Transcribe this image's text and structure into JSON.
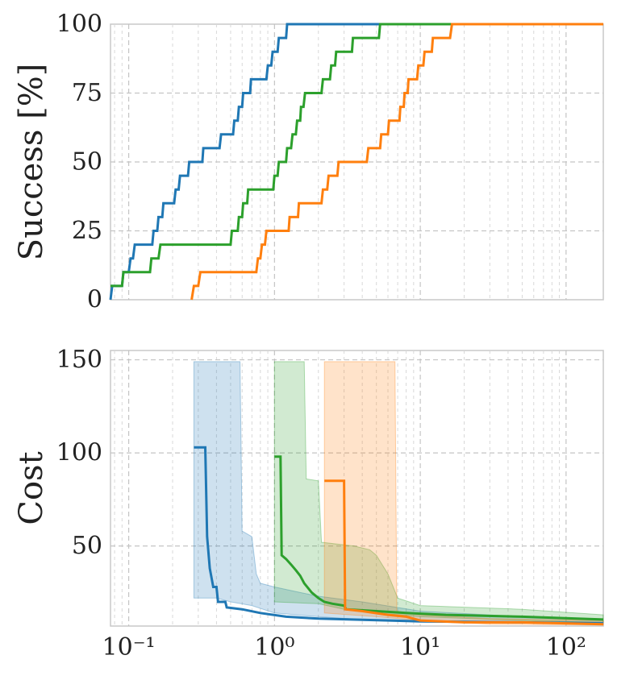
{
  "chart_data": [
    {
      "type": "line",
      "xscale": "log",
      "xlim": [
        0.075,
        180
      ],
      "ylim": [
        0,
        100
      ],
      "ylabel": "Success [%]",
      "grid": true,
      "yticks": [
        {
          "value": 0,
          "label": "0"
        },
        {
          "value": 25,
          "label": "25"
        },
        {
          "value": 50,
          "label": "50"
        },
        {
          "value": 75,
          "label": "75"
        },
        {
          "value": 100,
          "label": "100"
        }
      ],
      "series": [
        {
          "color": "#1f77b4",
          "points": [
            [
              0.075,
              0
            ],
            [
              0.077,
              5
            ],
            [
              0.09,
              5
            ],
            [
              0.092,
              10
            ],
            [
              0.1,
              10
            ],
            [
              0.103,
              15
            ],
            [
              0.107,
              15
            ],
            [
              0.11,
              20
            ],
            [
              0.145,
              20
            ],
            [
              0.148,
              25
            ],
            [
              0.157,
              25
            ],
            [
              0.16,
              30
            ],
            [
              0.17,
              30
            ],
            [
              0.173,
              35
            ],
            [
              0.205,
              35
            ],
            [
              0.21,
              40
            ],
            [
              0.22,
              40
            ],
            [
              0.225,
              45
            ],
            [
              0.255,
              45
            ],
            [
              0.26,
              50
            ],
            [
              0.32,
              50
            ],
            [
              0.325,
              55
            ],
            [
              0.42,
              55
            ],
            [
              0.43,
              60
            ],
            [
              0.52,
              60
            ],
            [
              0.53,
              65
            ],
            [
              0.56,
              65
            ],
            [
              0.57,
              70
            ],
            [
              0.6,
              70
            ],
            [
              0.61,
              75
            ],
            [
              0.68,
              75
            ],
            [
              0.69,
              80
            ],
            [
              0.88,
              80
            ],
            [
              0.9,
              85
            ],
            [
              0.95,
              85
            ],
            [
              0.97,
              90
            ],
            [
              1.05,
              90
            ],
            [
              1.07,
              95
            ],
            [
              1.2,
              95
            ],
            [
              1.22,
              100
            ],
            [
              180,
              100
            ]
          ]
        },
        {
          "color": "#2ca02c",
          "points": [
            [
              0.075,
              5
            ],
            [
              0.09,
              5
            ],
            [
              0.092,
              10
            ],
            [
              0.14,
              10
            ],
            [
              0.143,
              15
            ],
            [
              0.16,
              15
            ],
            [
              0.165,
              20
            ],
            [
              0.5,
              20
            ],
            [
              0.51,
              25
            ],
            [
              0.56,
              25
            ],
            [
              0.57,
              30
            ],
            [
              0.6,
              30
            ],
            [
              0.61,
              35
            ],
            [
              0.65,
              35
            ],
            [
              0.66,
              40
            ],
            [
              0.98,
              40
            ],
            [
              1.0,
              45
            ],
            [
              1.05,
              45
            ],
            [
              1.07,
              50
            ],
            [
              1.2,
              50
            ],
            [
              1.22,
              55
            ],
            [
              1.3,
              55
            ],
            [
              1.33,
              60
            ],
            [
              1.4,
              60
            ],
            [
              1.43,
              65
            ],
            [
              1.5,
              65
            ],
            [
              1.52,
              70
            ],
            [
              1.58,
              70
            ],
            [
              1.62,
              75
            ],
            [
              2.1,
              75
            ],
            [
              2.15,
              80
            ],
            [
              2.4,
              80
            ],
            [
              2.45,
              85
            ],
            [
              2.6,
              85
            ],
            [
              2.65,
              90
            ],
            [
              3.4,
              90
            ],
            [
              3.45,
              95
            ],
            [
              5.2,
              95
            ],
            [
              5.3,
              100
            ],
            [
              180,
              100
            ]
          ]
        },
        {
          "color": "#ff7f0e",
          "points": [
            [
              0.27,
              0
            ],
            [
              0.28,
              5
            ],
            [
              0.3,
              5
            ],
            [
              0.31,
              10
            ],
            [
              0.75,
              10
            ],
            [
              0.77,
              15
            ],
            [
              0.8,
              15
            ],
            [
              0.82,
              20
            ],
            [
              0.86,
              20
            ],
            [
              0.88,
              25
            ],
            [
              1.25,
              25
            ],
            [
              1.27,
              30
            ],
            [
              1.45,
              30
            ],
            [
              1.47,
              35
            ],
            [
              2.1,
              35
            ],
            [
              2.15,
              40
            ],
            [
              2.3,
              40
            ],
            [
              2.35,
              45
            ],
            [
              2.7,
              45
            ],
            [
              2.75,
              50
            ],
            [
              4.3,
              50
            ],
            [
              4.4,
              55
            ],
            [
              5.3,
              55
            ],
            [
              5.4,
              60
            ],
            [
              6.0,
              60
            ],
            [
              6.1,
              65
            ],
            [
              7.2,
              65
            ],
            [
              7.3,
              70
            ],
            [
              7.7,
              70
            ],
            [
              7.8,
              75
            ],
            [
              8.2,
              75
            ],
            [
              8.3,
              80
            ],
            [
              9.5,
              80
            ],
            [
              9.7,
              85
            ],
            [
              10.5,
              85
            ],
            [
              10.7,
              90
            ],
            [
              12.0,
              90
            ],
            [
              12.2,
              95
            ],
            [
              16.0,
              95
            ],
            [
              16.5,
              100
            ],
            [
              180,
              100
            ]
          ]
        }
      ]
    },
    {
      "type": "area",
      "xscale": "log",
      "xlim": [
        0.075,
        180
      ],
      "ylim": [
        7,
        155
      ],
      "ylabel": "Cost",
      "grid": true,
      "xticks": [
        {
          "value": 0.1,
          "label": "10⁻¹"
        },
        {
          "value": 1,
          "label": "10⁰"
        },
        {
          "value": 10,
          "label": "10¹"
        },
        {
          "value": 100,
          "label": "10²"
        }
      ],
      "yticks": [
        {
          "value": 50,
          "label": "50"
        },
        {
          "value": 100,
          "label": "100"
        },
        {
          "value": 150,
          "label": "150"
        }
      ],
      "series": [
        {
          "color": "#1f77b4",
          "line": [
            [
              0.28,
              103
            ],
            [
              0.335,
              103
            ],
            [
              0.345,
              55
            ],
            [
              0.36,
              38
            ],
            [
              0.38,
              28
            ],
            [
              0.4,
              28
            ],
            [
              0.41,
              20
            ],
            [
              0.46,
              20
            ],
            [
              0.47,
              17
            ],
            [
              0.6,
              16
            ],
            [
              0.8,
              14
            ],
            [
              1.2,
              12
            ],
            [
              2,
              11
            ],
            [
              10,
              9.5
            ],
            [
              50,
              9
            ],
            [
              180,
              8.5
            ]
          ],
          "upper": [
            [
              0.28,
              149
            ],
            [
              0.58,
              149
            ],
            [
              0.6,
              58
            ],
            [
              0.7,
              55
            ],
            [
              0.75,
              35
            ],
            [
              0.8,
              30
            ],
            [
              1,
              28
            ],
            [
              1.5,
              25
            ],
            [
              2,
              23
            ],
            [
              4,
              20
            ],
            [
              10,
              15
            ],
            [
              50,
              12
            ],
            [
              180,
              10
            ]
          ],
          "lower": [
            [
              0.28,
              22
            ],
            [
              0.4,
              22
            ],
            [
              0.5,
              20
            ],
            [
              0.7,
              18
            ],
            [
              1,
              14
            ],
            [
              2,
              12
            ],
            [
              5,
              10
            ],
            [
              20,
              9
            ],
            [
              180,
              8
            ]
          ]
        },
        {
          "color": "#2ca02c",
          "line": [
            [
              1.0,
              98
            ],
            [
              1.1,
              98
            ],
            [
              1.12,
              45
            ],
            [
              1.2,
              43
            ],
            [
              1.3,
              40
            ],
            [
              1.4,
              37
            ],
            [
              1.5,
              34
            ],
            [
              1.6,
              30
            ],
            [
              1.8,
              25
            ],
            [
              2,
              22
            ],
            [
              2.2,
              20
            ],
            [
              2.5,
              19
            ],
            [
              3,
              18
            ],
            [
              3.1,
              16
            ],
            [
              5,
              15
            ],
            [
              8,
              14
            ],
            [
              15,
              13
            ],
            [
              50,
              12
            ],
            [
              180,
              10.5
            ]
          ],
          "upper": [
            [
              1.0,
              149
            ],
            [
              1.6,
              149
            ],
            [
              1.65,
              86
            ],
            [
              2.0,
              85
            ],
            [
              2.1,
              52
            ],
            [
              3.5,
              50
            ],
            [
              4.5,
              48
            ],
            [
              5,
              45
            ],
            [
              6,
              35
            ],
            [
              7,
              22
            ],
            [
              10,
              18
            ],
            [
              50,
              16
            ],
            [
              180,
              13
            ]
          ],
          "lower": [
            [
              1.0,
              20
            ],
            [
              2,
              19
            ],
            [
              3,
              16
            ],
            [
              5,
              14
            ],
            [
              10,
              12
            ],
            [
              50,
              10
            ],
            [
              180,
              9
            ]
          ]
        },
        {
          "color": "#ff7f0e",
          "line": [
            [
              2.2,
              85
            ],
            [
              3.0,
              85
            ],
            [
              3.05,
              16
            ],
            [
              4,
              15
            ],
            [
              6,
              13
            ],
            [
              8,
              12
            ],
            [
              10,
              10
            ],
            [
              20,
              9
            ],
            [
              50,
              9
            ],
            [
              180,
              8
            ]
          ],
          "upper": [
            [
              2.2,
              149
            ],
            [
              6.7,
              149
            ],
            [
              6.9,
              15
            ],
            [
              10,
              13
            ],
            [
              30,
              11
            ],
            [
              180,
              10
            ]
          ],
          "lower": [
            [
              2.2,
              14
            ],
            [
              5,
              12
            ],
            [
              10,
              10
            ],
            [
              30,
              8
            ],
            [
              180,
              7.5
            ]
          ]
        }
      ]
    }
  ]
}
